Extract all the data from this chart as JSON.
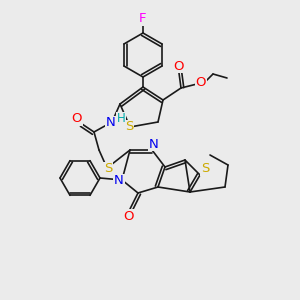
{
  "background_color": "#ebebeb",
  "bond_color": "#1a1a1a",
  "atom_colors": {
    "F": "#ff00ff",
    "S": "#ccaa00",
    "O": "#ff0000",
    "N": "#0000ee",
    "H": "#00aaaa",
    "C": "#1a1a1a"
  },
  "font_size_atom": 8.5,
  "fig_size": [
    3.0,
    3.0
  ],
  "dpi": 100,
  "lw": 1.2,
  "double_sep": 2.8
}
